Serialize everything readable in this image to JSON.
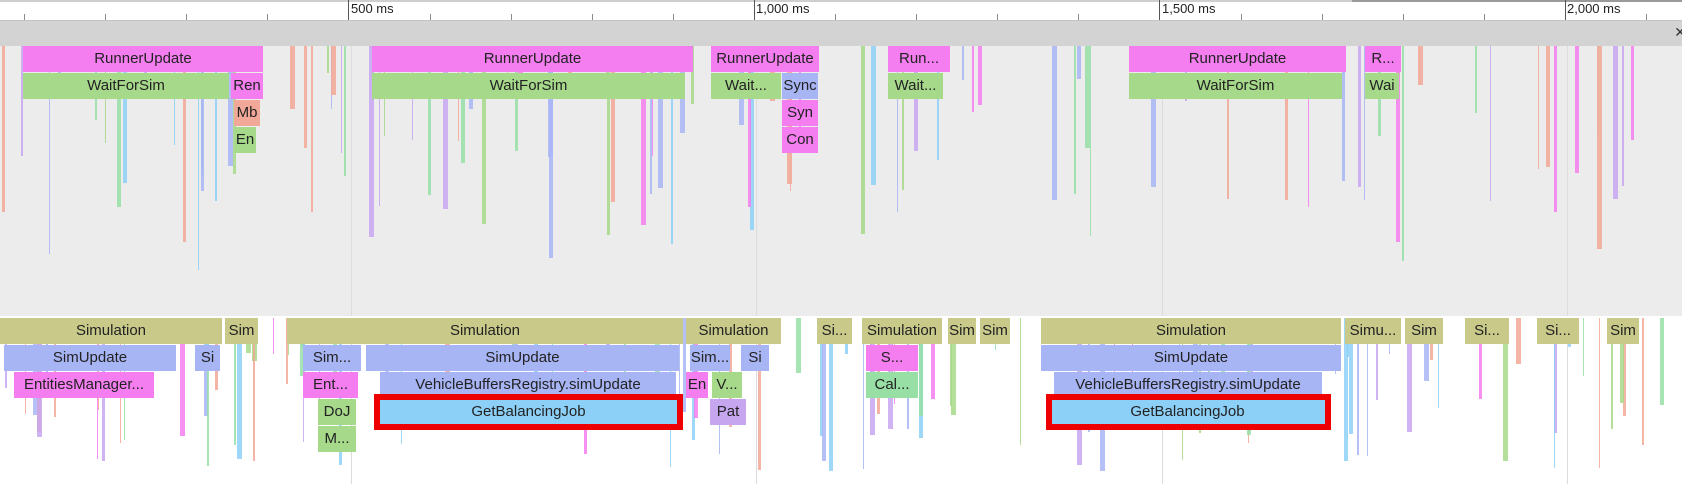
{
  "ruler": {
    "major_labels": [
      "500 ms",
      "1,000 ms",
      "1,500 ms",
      "2,000 ms"
    ]
  },
  "colors": {
    "pink": "#f47ef0",
    "green": "#a6d98a",
    "blue": "#a8b5f5",
    "olive": "#c9ca8a",
    "sky": "#8dd0f7",
    "salmon": "#f2a898",
    "mint": "#98dfa6",
    "lavender": "#c7a6f0",
    "highlight": "#ee0000"
  },
  "main_thread": {
    "rows": [
      [
        {
          "label": "RunnerUpdate",
          "color": "pink"
        },
        {
          "label": "RunnerUpdate",
          "color": "pink"
        },
        {
          "label": "RunnerUpdate",
          "color": "pink"
        },
        {
          "label": "Run...",
          "color": "pink"
        },
        {
          "label": "RunnerUpdate",
          "color": "pink"
        },
        {
          "label": "R...",
          "color": "pink"
        }
      ],
      [
        {
          "label": "WaitForSim",
          "color": "green"
        },
        {
          "label": "Ren",
          "color": "pink"
        },
        {
          "label": "WaitForSim",
          "color": "green"
        },
        {
          "label": "Wait...",
          "color": "green"
        },
        {
          "label": "Sync",
          "color": "blue"
        },
        {
          "label": "Wait...",
          "color": "green"
        },
        {
          "label": "WaitForSim",
          "color": "green"
        },
        {
          "label": "Wai",
          "color": "green"
        }
      ],
      [
        {
          "label": "Mb",
          "color": "salmon"
        },
        {
          "label": "Syn",
          "color": "pink"
        }
      ],
      [
        {
          "label": "En",
          "color": "green"
        },
        {
          "label": "Con",
          "color": "pink"
        }
      ]
    ]
  },
  "simulation_thread": {
    "rows": [
      [
        {
          "label": "Simulation",
          "color": "olive"
        },
        {
          "label": "Sim",
          "color": "olive"
        },
        {
          "label": "Simulation",
          "color": "olive"
        },
        {
          "label": "Simulation",
          "color": "olive"
        },
        {
          "label": "Si...",
          "color": "olive"
        },
        {
          "label": "Simulation",
          "color": "olive"
        },
        {
          "label": "Sim",
          "color": "olive"
        },
        {
          "label": "Sim",
          "color": "olive"
        },
        {
          "label": "Simulation",
          "color": "olive"
        },
        {
          "label": "Simu...",
          "color": "olive"
        },
        {
          "label": "Sim",
          "color": "olive"
        },
        {
          "label": "Si...",
          "color": "olive"
        },
        {
          "label": "Si...",
          "color": "olive"
        },
        {
          "label": "Sim",
          "color": "olive"
        }
      ],
      [
        {
          "label": "SimUpdate",
          "color": "blue"
        },
        {
          "label": "Si",
          "color": "blue"
        },
        {
          "label": "Sim...",
          "color": "blue"
        },
        {
          "label": "SimUpdate",
          "color": "blue"
        },
        {
          "label": "Sim...",
          "color": "blue"
        },
        {
          "label": "Si",
          "color": "blue"
        },
        {
          "label": "S...",
          "color": "pink"
        },
        {
          "label": "SimUpdate",
          "color": "blue"
        }
      ],
      [
        {
          "label": "EntitiesManager...",
          "color": "pink"
        },
        {
          "label": "Ent...",
          "color": "pink"
        },
        {
          "label": "VehicleBuffersRegistry.simUpdate",
          "color": "blue"
        },
        {
          "label": "En",
          "color": "pink"
        },
        {
          "label": "V...",
          "color": "green"
        },
        {
          "label": "Cal...",
          "color": "mint"
        },
        {
          "label": "VehicleBuffersRegistry.simUpdate",
          "color": "blue"
        }
      ],
      [
        {
          "label": "DoJ",
          "color": "green"
        },
        {
          "label": "GetBalancingJob",
          "color": "sky"
        },
        {
          "label": "Pat",
          "color": "lavender"
        },
        {
          "label": "GetBalancingJob",
          "color": "sky"
        }
      ],
      [
        {
          "label": "M...",
          "color": "green"
        }
      ]
    ]
  }
}
